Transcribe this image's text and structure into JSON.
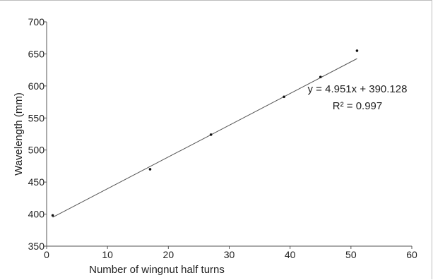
{
  "chart_data": {
    "type": "scatter",
    "title": "",
    "xlabel": "Number of wingnut half turns",
    "ylabel": "Wavelength (mm)",
    "xlim": [
      0,
      60
    ],
    "ylim": [
      350,
      700
    ],
    "x_ticks": [
      0,
      10,
      20,
      30,
      40,
      50,
      60
    ],
    "y_ticks": [
      350,
      400,
      450,
      500,
      550,
      600,
      650,
      700
    ],
    "grid": false,
    "series": [
      {
        "points": [
          {
            "x": 1,
            "y": 398
          },
          {
            "x": 17,
            "y": 470
          },
          {
            "x": 27,
            "y": 524
          },
          {
            "x": 39,
            "y": 583
          },
          {
            "x": 45,
            "y": 614
          },
          {
            "x": 51,
            "y": 655
          }
        ]
      }
    ],
    "trendline": {
      "slope": 4.951,
      "intercept": 390.128,
      "x_range": [
        1,
        51
      ],
      "equation_label": "y = 4.951x + 390.128",
      "r2_label": "R² = 0.997"
    },
    "colors": {
      "points": "#111111",
      "trendline": "#555555",
      "axis": "#555555"
    }
  }
}
